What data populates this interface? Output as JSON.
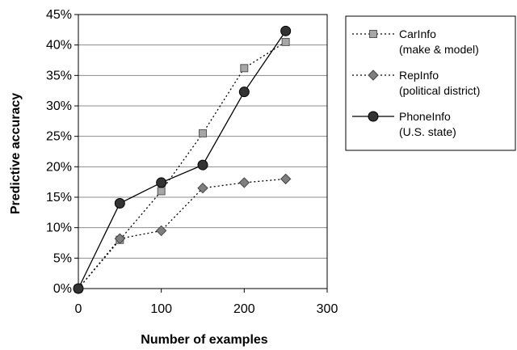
{
  "chart_data": {
    "type": "line",
    "title": "",
    "xlabel": "Number of examples",
    "ylabel": "Predictive accuracy",
    "xlim": [
      0,
      300
    ],
    "ylim": [
      0,
      45
    ],
    "x_ticks": [
      "0",
      "100",
      "200",
      "300"
    ],
    "y_ticks": [
      "0%",
      "5%",
      "10%",
      "15%",
      "20%",
      "25%",
      "30%",
      "35%",
      "40%",
      "45%"
    ],
    "grid": "horizontal",
    "legend_position": "top-right",
    "series": [
      {
        "name": "CarInfo",
        "name_line2": "(make & model)",
        "marker": "square",
        "line": "dotted",
        "marker_color": "#a6a6a6",
        "points": [
          [
            0,
            0
          ],
          [
            50,
            8
          ],
          [
            100,
            16
          ],
          [
            150,
            25.5
          ],
          [
            200,
            36.2
          ],
          [
            250,
            40.5
          ]
        ]
      },
      {
        "name": "RepInfo",
        "name_line2": "(political district)",
        "marker": "diamond",
        "line": "dotted",
        "marker_color": "#7f7f7f",
        "points": [
          [
            0,
            0
          ],
          [
            50,
            8.2
          ],
          [
            100,
            9.5
          ],
          [
            150,
            16.5
          ],
          [
            200,
            17.4
          ],
          [
            250,
            18
          ]
        ]
      },
      {
        "name": "PhoneInfo",
        "name_line2": "(U.S. state)",
        "marker": "circle",
        "line": "solid",
        "marker_color": "#333333",
        "points": [
          [
            0,
            0
          ],
          [
            50,
            14
          ],
          [
            100,
            17.4
          ],
          [
            150,
            20.3
          ],
          [
            200,
            32.3
          ],
          [
            250,
            42.3
          ]
        ]
      }
    ]
  }
}
